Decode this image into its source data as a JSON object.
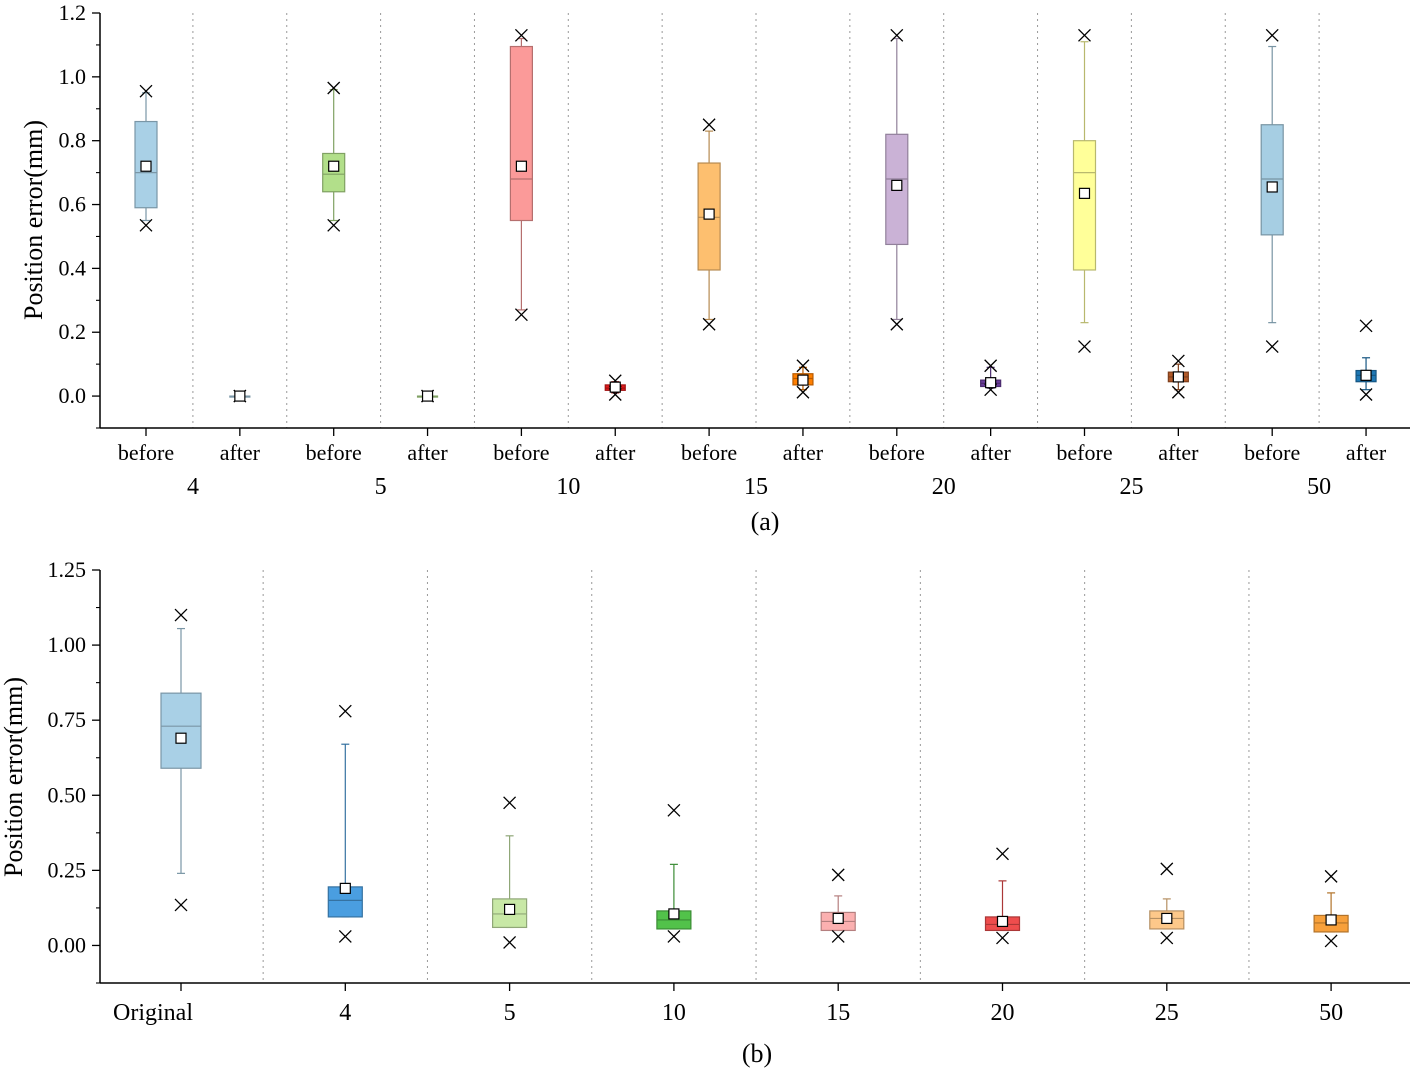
{
  "chart_data": [
    {
      "type": "box",
      "panel_label": "(a)",
      "ylabel": "Position error(mm)",
      "ylim": [
        -0.1,
        1.2
      ],
      "yticks": [
        "0.0",
        "0.2",
        "0.4",
        "0.6",
        "0.8",
        "1.0",
        "1.2"
      ],
      "ytick_values": [
        0.0,
        0.2,
        0.4,
        0.6,
        0.8,
        1.0,
        1.2
      ],
      "groups": [
        {
          "label": "4",
          "boxes": [
            {
              "category": "before",
              "color": "#a9d0e6",
              "q1": 0.59,
              "median": 0.7,
              "q3": 0.86,
              "whisker_low": 0.55,
              "whisker_high": 0.95,
              "mean": 0.72,
              "min": 0.535,
              "max": 0.955
            },
            {
              "category": "after",
              "color": "#a9d0e6",
              "q1": 0.0,
              "median": 0.0,
              "q3": 0.0,
              "whisker_low": 0.0,
              "whisker_high": 0.0,
              "mean": 0.0,
              "min": 0.0,
              "max": 0.0
            }
          ]
        },
        {
          "label": "5",
          "boxes": [
            {
              "category": "before",
              "color": "#b2df8a",
              "q1": 0.64,
              "median": 0.695,
              "q3": 0.76,
              "whisker_low": 0.55,
              "whisker_high": 0.96,
              "mean": 0.72,
              "min": 0.535,
              "max": 0.965
            },
            {
              "category": "after",
              "color": "#b2df8a",
              "q1": 0.0,
              "median": 0.0,
              "q3": 0.0,
              "whisker_low": 0.0,
              "whisker_high": 0.0,
              "mean": 0.0,
              "min": 0.0,
              "max": 0.0
            }
          ]
        },
        {
          "label": "10",
          "boxes": [
            {
              "category": "before",
              "color": "#fb9a99",
              "q1": 0.55,
              "median": 0.68,
              "q3": 1.095,
              "whisker_low": 0.27,
              "whisker_high": 1.12,
              "mean": 0.72,
              "min": 0.255,
              "max": 1.13
            },
            {
              "category": "after",
              "color": "#e31a1c",
              "q1": 0.018,
              "median": 0.025,
              "q3": 0.035,
              "whisker_low": 0.01,
              "whisker_high": 0.045,
              "mean": 0.028,
              "min": 0.005,
              "max": 0.048
            }
          ]
        },
        {
          "label": "15",
          "boxes": [
            {
              "category": "before",
              "color": "#fdbf6f",
              "q1": 0.395,
              "median": 0.56,
              "q3": 0.73,
              "whisker_low": 0.24,
              "whisker_high": 0.83,
              "mean": 0.57,
              "min": 0.225,
              "max": 0.85
            },
            {
              "category": "after",
              "color": "#ff7f00",
              "q1": 0.035,
              "median": 0.055,
              "q3": 0.07,
              "whisker_low": 0.02,
              "whisker_high": 0.09,
              "mean": 0.05,
              "min": 0.012,
              "max": 0.095
            }
          ]
        },
        {
          "label": "20",
          "boxes": [
            {
              "category": "before",
              "color": "#cab2d6",
              "q1": 0.475,
              "median": 0.68,
              "q3": 0.82,
              "whisker_low": 0.24,
              "whisker_high": 1.12,
              "mean": 0.66,
              "min": 0.225,
              "max": 1.13
            },
            {
              "category": "after",
              "color": "#6a3d9a",
              "q1": 0.03,
              "median": 0.04,
              "q3": 0.05,
              "whisker_low": 0.025,
              "whisker_high": 0.09,
              "mean": 0.042,
              "min": 0.02,
              "max": 0.095
            }
          ]
        },
        {
          "label": "25",
          "boxes": [
            {
              "category": "before",
              "color": "#ffff99",
              "q1": 0.395,
              "median": 0.7,
              "q3": 0.8,
              "whisker_low": 0.23,
              "whisker_high": 1.11,
              "mean": 0.635,
              "min": 0.155,
              "max": 1.13
            },
            {
              "category": "after",
              "color": "#b15928",
              "q1": 0.045,
              "median": 0.06,
              "q3": 0.075,
              "whisker_low": 0.02,
              "whisker_high": 0.1,
              "mean": 0.06,
              "min": 0.012,
              "max": 0.11
            }
          ]
        },
        {
          "label": "50",
          "boxes": [
            {
              "category": "before",
              "color": "#a6cee3",
              "q1": 0.505,
              "median": 0.68,
              "q3": 0.85,
              "whisker_low": 0.23,
              "whisker_high": 1.095,
              "mean": 0.655,
              "min": 0.155,
              "max": 1.13
            },
            {
              "category": "after",
              "color": "#1f78b4",
              "q1": 0.045,
              "median": 0.065,
              "q3": 0.08,
              "whisker_low": 0.02,
              "whisker_high": 0.12,
              "mean": 0.065,
              "min": 0.005,
              "max": 0.22
            }
          ]
        }
      ]
    },
    {
      "type": "box",
      "panel_label": "(b)",
      "ylabel": "Position error(mm)",
      "ylim": [
        -0.125,
        1.25
      ],
      "yticks": [
        "0.00",
        "0.25",
        "0.50",
        "0.75",
        "1.00",
        "1.25"
      ],
      "ytick_values": [
        0.0,
        0.25,
        0.5,
        0.75,
        1.0,
        1.25
      ],
      "boxes": [
        {
          "category": "Original",
          "color": "#a9d0e6",
          "q1": 0.59,
          "median": 0.73,
          "q3": 0.84,
          "whisker_low": 0.24,
          "whisker_high": 1.055,
          "mean": 0.69,
          "min": 0.135,
          "max": 1.1
        },
        {
          "category": "4",
          "color": "#4a9ee0",
          "q1": 0.095,
          "median": 0.15,
          "q3": 0.195,
          "whisker_low": 0.095,
          "whisker_high": 0.67,
          "mean": 0.19,
          "min": 0.03,
          "max": 0.78
        },
        {
          "category": "5",
          "color": "#c8e8a6",
          "q1": 0.06,
          "median": 0.105,
          "q3": 0.155,
          "whisker_low": 0.06,
          "whisker_high": 0.365,
          "mean": 0.12,
          "min": 0.01,
          "max": 0.475
        },
        {
          "category": "10",
          "color": "#52c24a",
          "q1": 0.055,
          "median": 0.085,
          "q3": 0.115,
          "whisker_low": 0.055,
          "whisker_high": 0.27,
          "mean": 0.105,
          "min": 0.03,
          "max": 0.45
        },
        {
          "category": "15",
          "color": "#fbb0b0",
          "q1": 0.05,
          "median": 0.08,
          "q3": 0.11,
          "whisker_low": 0.05,
          "whisker_high": 0.165,
          "mean": 0.09,
          "min": 0.03,
          "max": 0.235
        },
        {
          "category": "20",
          "color": "#ee4d4d",
          "q1": 0.05,
          "median": 0.07,
          "q3": 0.095,
          "whisker_low": 0.05,
          "whisker_high": 0.215,
          "mean": 0.08,
          "min": 0.025,
          "max": 0.305
        },
        {
          "category": "25",
          "color": "#fdc88a",
          "q1": 0.055,
          "median": 0.09,
          "q3": 0.115,
          "whisker_low": 0.055,
          "whisker_high": 0.155,
          "mean": 0.09,
          "min": 0.025,
          "max": 0.255
        },
        {
          "category": "50",
          "color": "#f7a03b",
          "q1": 0.045,
          "median": 0.075,
          "q3": 0.1,
          "whisker_low": 0.045,
          "whisker_high": 0.175,
          "mean": 0.085,
          "min": 0.015,
          "max": 0.23
        }
      ]
    }
  ]
}
